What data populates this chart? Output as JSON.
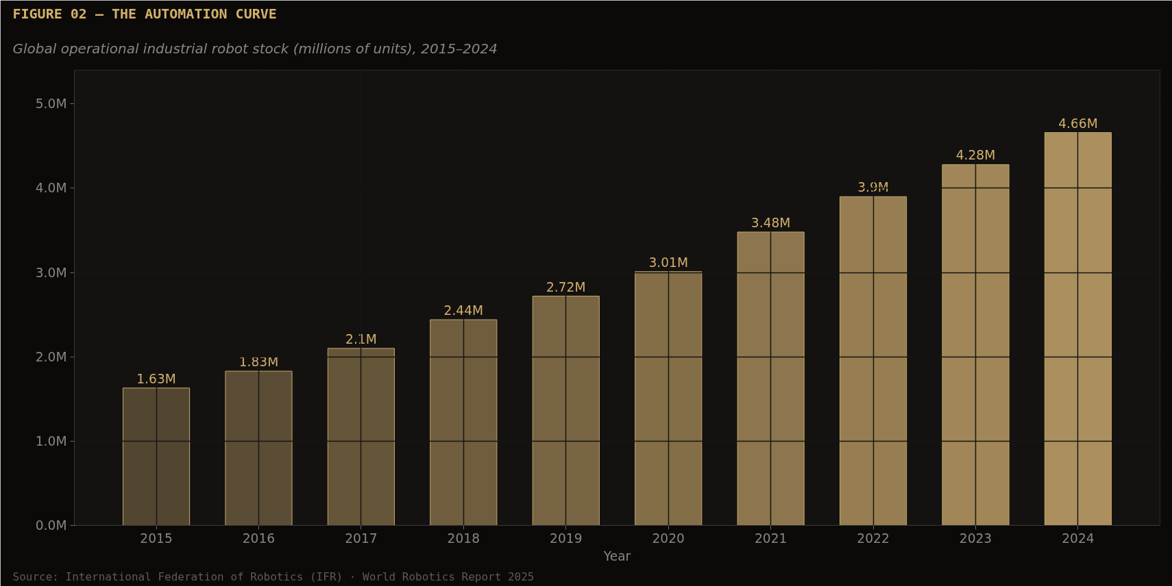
{
  "chart_data": {
    "type": "bar",
    "title": "FIGURE 02 — THE AUTOMATION CURVE",
    "subtitle": "Global operational industrial robot stock (millions of units), 2015–2024",
    "xlabel": "Year",
    "annotations": [
      "Source: International Federation of Robotics (IFR) · World Robotics Report 2025"
    ],
    "categories": [
      "2015",
      "2016",
      "2017",
      "2018",
      "2019",
      "2020",
      "2021",
      "2022",
      "2023",
      "2024"
    ],
    "values": [
      1.63,
      1.83,
      2.1,
      2.44,
      2.72,
      3.01,
      3.48,
      3.9,
      4.28,
      4.66
    ],
    "value_labels": [
      "1.63M",
      "1.83M",
      "2.1M",
      "2.44M",
      "2.72M",
      "3.01M",
      "3.48M",
      "3.9M",
      "4.28M",
      "4.66M"
    ],
    "colors": [
      "#524631",
      "#5b4d35",
      "#655539",
      "#6f5d3e",
      "#796543",
      "#836e48",
      "#8d764d",
      "#977e52",
      "#a18657",
      "#ab8f5e"
    ],
    "ylim": [
      0,
      5.4
    ],
    "yticks": [
      {
        "value": 0,
        "label": "0.0M"
      },
      {
        "value": 1,
        "label": "1.0M"
      },
      {
        "value": 2,
        "label": "2.0M"
      },
      {
        "value": 3,
        "label": "3.0M"
      },
      {
        "value": 4,
        "label": "4.0M"
      },
      {
        "value": 5,
        "label": "5.0M"
      }
    ],
    "grid": true
  }
}
